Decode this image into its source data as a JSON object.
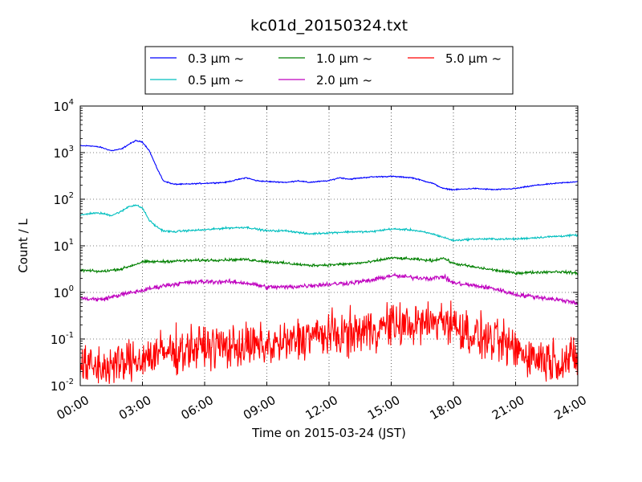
{
  "chart_data": {
    "type": "line",
    "title": "kc01d_20150324.txt",
    "xlabel": "Time on 2015-03-24 (JST)",
    "ylabel": "Count / L",
    "x_range": [
      "00:00",
      "24:00"
    ],
    "x_ticks": [
      "00:00",
      "03:00",
      "06:00",
      "09:00",
      "12:00",
      "15:00",
      "18:00",
      "21:00",
      "24:00"
    ],
    "y_scale": "log",
    "ylim": [
      0.01,
      10000
    ],
    "y_ticks": [
      {
        "base": "10",
        "exp": "-2",
        "value": 0.01
      },
      {
        "base": "10",
        "exp": "-1",
        "value": 0.1
      },
      {
        "base": "10",
        "exp": "0",
        "value": 1
      },
      {
        "base": "10",
        "exp": "1",
        "value": 10
      },
      {
        "base": "10",
        "exp": "2",
        "value": 100
      },
      {
        "base": "10",
        "exp": "3",
        "value": 1000
      },
      {
        "base": "10",
        "exp": "4",
        "value": 10000
      }
    ],
    "grid": true,
    "legend_position": "top-center",
    "series": [
      {
        "name": "0.3 μm ~",
        "color": "#0000ff",
        "x": [
          "00:00",
          "00:30",
          "01:00",
          "01:30",
          "02:00",
          "02:20",
          "02:40",
          "03:00",
          "03:20",
          "03:40",
          "04:00",
          "04:30",
          "05:00",
          "06:00",
          "07:00",
          "08:00",
          "08:30",
          "09:00",
          "10:00",
          "10:30",
          "11:00",
          "12:00",
          "12:30",
          "13:00",
          "14:00",
          "15:00",
          "16:00",
          "17:00",
          "17:30",
          "18:00",
          "19:00",
          "20:00",
          "21:00",
          "22:00",
          "23:00",
          "24:00"
        ],
        "values": [
          1400,
          1400,
          1300,
          1100,
          1200,
          1500,
          1800,
          1700,
          1100,
          500,
          250,
          210,
          210,
          220,
          230,
          290,
          250,
          240,
          230,
          250,
          230,
          250,
          290,
          270,
          300,
          310,
          290,
          220,
          170,
          160,
          170,
          160,
          170,
          200,
          220,
          240
        ],
        "noise": 0.03
      },
      {
        "name": "0.5 μm ~",
        "color": "#00bfbf",
        "x": [
          "00:00",
          "00:30",
          "01:00",
          "01:30",
          "02:00",
          "02:20",
          "02:40",
          "03:00",
          "03:20",
          "03:40",
          "04:00",
          "04:30",
          "05:00",
          "06:00",
          "07:00",
          "08:00",
          "09:00",
          "10:00",
          "11:00",
          "12:00",
          "13:00",
          "14:00",
          "15:00",
          "16:00",
          "17:00",
          "18:00",
          "19:00",
          "20:00",
          "21:00",
          "22:00",
          "23:00",
          "24:00"
        ],
        "values": [
          45,
          50,
          50,
          45,
          55,
          70,
          75,
          65,
          35,
          26,
          21,
          20,
          21,
          22,
          24,
          25,
          21,
          21,
          18,
          19,
          20,
          20,
          23,
          22,
          18,
          13,
          14,
          14,
          14,
          15,
          16,
          17
        ],
        "noise": 0.05
      },
      {
        "name": "1.0 μm ~",
        "color": "#008000",
        "x": [
          "00:00",
          "01:00",
          "02:00",
          "03:00",
          "04:00",
          "05:00",
          "06:00",
          "07:00",
          "08:00",
          "09:00",
          "10:00",
          "11:00",
          "12:00",
          "13:00",
          "14:00",
          "15:00",
          "16:00",
          "17:00",
          "17:30",
          "18:00",
          "19:00",
          "20:00",
          "21:00",
          "22:00",
          "23:00",
          "24:00"
        ],
        "values": [
          3.0,
          2.8,
          3.2,
          4.5,
          4.6,
          4.8,
          4.9,
          5.0,
          5.1,
          4.6,
          4.2,
          3.8,
          3.9,
          4.1,
          4.5,
          5.5,
          5.2,
          4.8,
          5.5,
          4.2,
          3.5,
          3.0,
          2.6,
          2.7,
          2.8,
          2.6
        ],
        "noise": 0.07
      },
      {
        "name": "2.0 μm ~",
        "color": "#bf00bf",
        "x": [
          "00:00",
          "01:00",
          "02:00",
          "03:00",
          "04:00",
          "05:00",
          "06:00",
          "07:00",
          "08:00",
          "09:00",
          "10:00",
          "11:00",
          "12:00",
          "13:00",
          "14:00",
          "15:00",
          "16:00",
          "17:00",
          "17:30",
          "18:00",
          "19:00",
          "20:00",
          "21:00",
          "22:00",
          "23:00",
          "24:00"
        ],
        "values": [
          0.75,
          0.7,
          0.9,
          1.1,
          1.4,
          1.6,
          1.7,
          1.7,
          1.6,
          1.3,
          1.3,
          1.4,
          1.5,
          1.6,
          1.8,
          2.3,
          2.1,
          2.0,
          2.2,
          1.6,
          1.4,
          1.2,
          0.9,
          0.8,
          0.7,
          0.6
        ],
        "noise": 0.12
      },
      {
        "name": "5.0 μm ~",
        "color": "#ff0000",
        "x": [
          "00:00",
          "01:00",
          "02:00",
          "03:00",
          "04:00",
          "05:00",
          "06:00",
          "07:00",
          "08:00",
          "09:00",
          "10:00",
          "11:00",
          "12:00",
          "13:00",
          "14:00",
          "15:00",
          "16:00",
          "17:00",
          "17:30",
          "18:00",
          "19:00",
          "20:00",
          "21:00",
          "22:00",
          "23:00",
          "24:00"
        ],
        "values": [
          0.025,
          0.025,
          0.028,
          0.04,
          0.05,
          0.06,
          0.07,
          0.07,
          0.07,
          0.07,
          0.08,
          0.12,
          0.12,
          0.13,
          0.16,
          0.2,
          0.2,
          0.22,
          0.28,
          0.2,
          0.12,
          0.09,
          0.06,
          0.04,
          0.035,
          0.035
        ],
        "noise": 0.45
      }
    ]
  }
}
